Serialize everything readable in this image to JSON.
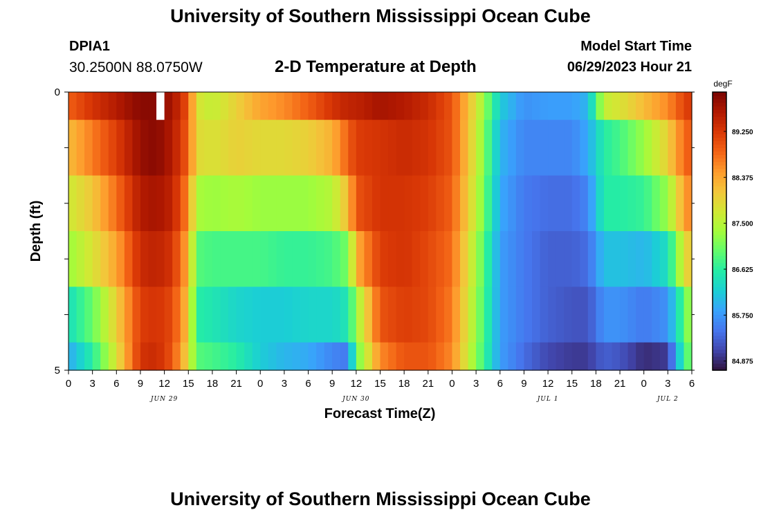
{
  "header": {
    "title": "University of Southern Mississippi Ocean Cube",
    "station_id": "DPIA1",
    "coords": "30.2500N  88.0750W",
    "subtitle": "2-D Temperature at Depth",
    "model_start_label": "Model Start Time",
    "model_start_time": "06/29/2023 Hour 21"
  },
  "footer": {
    "title": "University of Southern Mississippi Ocean Cube"
  },
  "colors": {
    "scale": [
      "#30123b",
      "#4145ab",
      "#4675ed",
      "#39a2fc",
      "#1bcfd4",
      "#24eca6",
      "#61fc6c",
      "#a4fc3b",
      "#d1e834",
      "#f3c63a",
      "#fe9b2d",
      "#f36315",
      "#d93806",
      "#b11901",
      "#7a0402"
    ],
    "nodata": "#ffffff"
  },
  "chart_data": {
    "type": "heatmap",
    "title": "2-D Temperature at Depth",
    "xlabel": "Forecast Time(Z)",
    "ylabel": "Depth (ft)",
    "x_tick_labels": [
      "0",
      "3",
      "6",
      "9",
      "12",
      "15",
      "18",
      "21",
      "0",
      "3",
      "6",
      "9",
      "12",
      "15",
      "18",
      "21",
      "0",
      "3",
      "6",
      "9",
      "12",
      "15",
      "18",
      "21",
      "0",
      "3",
      "6"
    ],
    "date_labels": [
      {
        "label": "JUN 29",
        "hour": 12
      },
      {
        "label": "JUN 30",
        "hour": 36
      },
      {
        "label": "JUL 1",
        "hour": 60
      },
      {
        "label": "JUL 2",
        "hour": 75
      }
    ],
    "xlim": [
      0,
      78
    ],
    "y_tick_labels": [
      "0",
      "5"
    ],
    "ylim": [
      0,
      5
    ],
    "depth_levels": [
      0,
      1,
      2,
      3,
      4,
      5
    ],
    "colorbar": {
      "unit": "degF",
      "tick_labels": [
        "84.875",
        "85.750",
        "86.625",
        "87.500",
        "88.375",
        "89.250"
      ],
      "range": [
        84.7,
        90.0
      ]
    },
    "missing": [
      {
        "hour": 11,
        "depth_index": 0
      }
    ],
    "keyframes": [
      {
        "hour": 0,
        "values": [
          88.9,
          88.2,
          87.7,
          87.3,
          86.4,
          85.9
        ]
      },
      {
        "hour": 3,
        "values": [
          89.3,
          88.7,
          88.1,
          87.8,
          87.0,
          86.6
        ]
      },
      {
        "hour": 6,
        "values": [
          89.6,
          89.2,
          88.8,
          88.4,
          88.0,
          87.8
        ]
      },
      {
        "hour": 9,
        "values": [
          89.9,
          89.8,
          89.6,
          89.4,
          89.2,
          89.3
        ]
      },
      {
        "hour": 11,
        "values": [
          89.9,
          89.9,
          89.7,
          89.5,
          89.3,
          89.4
        ]
      },
      {
        "hour": 13,
        "values": [
          89.7,
          89.6,
          89.5,
          89.3,
          89.1,
          89.0
        ]
      },
      {
        "hour": 15,
        "values": [
          89.0,
          88.9,
          88.6,
          88.3,
          88.1,
          87.9
        ]
      },
      {
        "hour": 16,
        "values": [
          87.8,
          87.9,
          87.4,
          86.9,
          86.6,
          86.9
        ]
      },
      {
        "hour": 18,
        "values": [
          87.6,
          87.8,
          87.3,
          86.8,
          86.5,
          86.8
        ]
      },
      {
        "hour": 21,
        "values": [
          88.0,
          88.0,
          87.4,
          86.8,
          86.3,
          86.6
        ]
      },
      {
        "hour": 24,
        "values": [
          88.4,
          87.9,
          87.3,
          86.8,
          86.2,
          86.2
        ]
      },
      {
        "hour": 27,
        "values": [
          88.6,
          87.9,
          87.3,
          86.7,
          86.2,
          86.0
        ]
      },
      {
        "hour": 30,
        "values": [
          88.9,
          88.0,
          87.3,
          86.7,
          86.3,
          85.9
        ]
      },
      {
        "hour": 33,
        "values": [
          89.3,
          88.3,
          87.5,
          86.8,
          86.3,
          85.6
        ]
      },
      {
        "hour": 35,
        "values": [
          89.5,
          88.9,
          88.2,
          87.1,
          86.5,
          85.5
        ]
      },
      {
        "hour": 36,
        "values": [
          89.5,
          89.2,
          89.0,
          88.3,
          87.3,
          87.0
        ]
      },
      {
        "hour": 39,
        "values": [
          89.7,
          89.3,
          89.3,
          89.2,
          89.0,
          88.6
        ]
      },
      {
        "hour": 42,
        "values": [
          89.6,
          89.4,
          89.3,
          89.3,
          89.2,
          89.0
        ]
      },
      {
        "hour": 45,
        "values": [
          89.4,
          89.3,
          89.2,
          89.1,
          89.1,
          89.0
        ]
      },
      {
        "hour": 48,
        "values": [
          89.0,
          89.0,
          88.9,
          88.8,
          88.7,
          88.6
        ]
      },
      {
        "hour": 51,
        "values": [
          87.8,
          87.7,
          87.6,
          87.4,
          87.3,
          87.2
        ]
      },
      {
        "hour": 54,
        "values": [
          86.2,
          86.0,
          85.9,
          85.8,
          85.8,
          85.8
        ]
      },
      {
        "hour": 57,
        "values": [
          85.7,
          85.6,
          85.5,
          85.5,
          85.5,
          85.4
        ]
      },
      {
        "hour": 60,
        "values": [
          85.8,
          85.6,
          85.4,
          85.3,
          85.3,
          85.1
        ]
      },
      {
        "hour": 63,
        "values": [
          85.8,
          85.6,
          85.4,
          85.3,
          85.2,
          85.0
        ]
      },
      {
        "hour": 65,
        "values": [
          86.0,
          85.9,
          85.6,
          85.4,
          85.2,
          85.0
        ]
      },
      {
        "hour": 67,
        "values": [
          87.6,
          86.6,
          86.6,
          86.1,
          85.7,
          85.3
        ]
      },
      {
        "hour": 69,
        "values": [
          87.8,
          86.8,
          86.6,
          86.1,
          85.7,
          85.2
        ]
      },
      {
        "hour": 72,
        "values": [
          88.2,
          87.3,
          86.7,
          86.0,
          85.5,
          84.9
        ]
      },
      {
        "hour": 75,
        "values": [
          88.6,
          88.0,
          87.3,
          86.4,
          85.7,
          85.0
        ]
      },
      {
        "hour": 77,
        "values": [
          89.1,
          88.8,
          88.4,
          87.8,
          86.9,
          86.7
        ]
      },
      {
        "hour": 78,
        "values": [
          89.3,
          89.0,
          88.7,
          88.2,
          87.5,
          87.2
        ]
      }
    ]
  }
}
